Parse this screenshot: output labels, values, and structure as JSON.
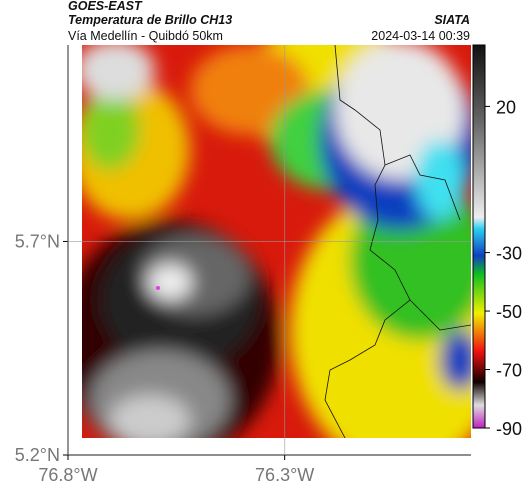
{
  "header": {
    "title": "GOES-EAST",
    "subtitle": "Temperatura de Brillo CH13",
    "location": "Vía Medellín - Quibdó 50km",
    "source": "SIATA",
    "timestamp": "2024-03-14 00:39"
  },
  "map": {
    "lat_range": [
      5.2,
      6.16
    ],
    "lon_range": [
      -76.8,
      -75.87
    ],
    "lat_ticks": [
      {
        "value": 5.7,
        "label": "5.7°N"
      },
      {
        "value": 5.2,
        "label": "5.2°N"
      }
    ],
    "lon_ticks": [
      {
        "value": -76.8,
        "label": "76.8°W"
      },
      {
        "value": -76.3,
        "label": "76.3°W"
      }
    ]
  },
  "colorbar": {
    "range": [
      41,
      -90
    ],
    "ticks": [
      20,
      -30,
      -50,
      -70,
      -90
    ]
  }
}
